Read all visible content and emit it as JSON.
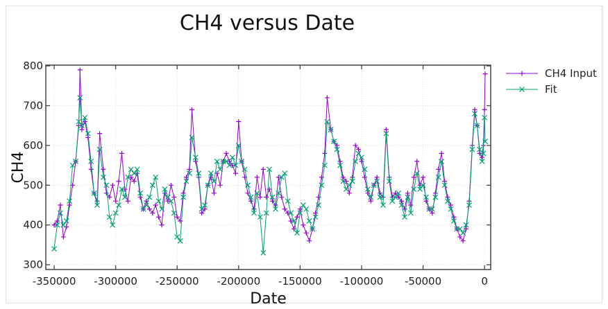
{
  "chart_data": {
    "type": "line",
    "title": "CH4 versus Date",
    "xlabel": "Date",
    "ylabel": "CH4",
    "xlim": [
      -356800,
      5000
    ],
    "ylim": [
      288,
      802
    ],
    "xticks": [
      -350000,
      -300000,
      -250000,
      -200000,
      -150000,
      -100000,
      -50000,
      0
    ],
    "xtick_labels": [
      "-350000",
      "-300000",
      "-250000",
      "-200000",
      "-150000",
      "-100000",
      "-50000",
      "0"
    ],
    "yticks": [
      300,
      400,
      500,
      600,
      700,
      800
    ],
    "ytick_labels": [
      "300",
      "400",
      "500",
      "600",
      "700",
      "800"
    ],
    "grid": true,
    "legend_position": "outside-top-right",
    "x": [
      -350000,
      -347500,
      -345000,
      -342500,
      -340000,
      -337500,
      -335000,
      -332500,
      -330000,
      -329000,
      -327500,
      -325000,
      -322500,
      -320000,
      -317500,
      -315000,
      -313000,
      -310000,
      -307500,
      -305000,
      -302500,
      -300000,
      -297500,
      -295000,
      -292500,
      -290000,
      -287500,
      -285000,
      -282500,
      -280000,
      -277500,
      -275000,
      -272500,
      -270000,
      -267500,
      -265000,
      -262500,
      -260000,
      -257500,
      -255000,
      -252500,
      -250000,
      -247500,
      -245000,
      -242500,
      -240000,
      -238000,
      -235000,
      -232500,
      -230000,
      -227500,
      -225000,
      -222500,
      -220000,
      -217500,
      -215000,
      -212500,
      -210000,
      -207500,
      -205000,
      -202500,
      -200000,
      -197500,
      -195000,
      -192500,
      -190000,
      -187500,
      -185000,
      -182500,
      -180000,
      -177500,
      -175000,
      -172500,
      -170000,
      -167500,
      -165000,
      -162500,
      -160000,
      -157500,
      -155000,
      -152500,
      -150000,
      -147500,
      -145000,
      -142500,
      -140000,
      -137500,
      -135000,
      -132500,
      -130000,
      -128000,
      -125000,
      -122500,
      -120000,
      -117500,
      -115000,
      -112500,
      -110000,
      -107500,
      -105000,
      -102500,
      -100000,
      -97500,
      -95000,
      -92500,
      -90000,
      -87500,
      -85000,
      -82500,
      -80000,
      -77500,
      -75000,
      -72500,
      -70000,
      -67500,
      -65000,
      -62500,
      -60000,
      -57500,
      -55000,
      -52500,
      -50000,
      -47500,
      -45000,
      -42500,
      -40000,
      -37500,
      -35000,
      -32500,
      -30000,
      -27500,
      -25000,
      -22500,
      -20000,
      -17500,
      -15000,
      -12500,
      -10000,
      -8000,
      -6000,
      -4000,
      -2000,
      -1000,
      0,
      500
    ],
    "series": [
      {
        "name": "CH4 Input",
        "color": "#9400d3",
        "marker": "plus",
        "values": [
          400,
          410,
          450,
          370,
          395,
          450,
          500,
          560,
          650,
          790,
          640,
          660,
          620,
          540,
          480,
          460,
          630,
          540,
          480,
          470,
          500,
          460,
          510,
          580,
          490,
          460,
          520,
          510,
          530,
          470,
          440,
          460,
          440,
          430,
          450,
          420,
          400,
          480,
          460,
          500,
          470,
          420,
          410,
          480,
          520,
          540,
          690,
          560,
          520,
          430,
          440,
          500,
          520,
          480,
          530,
          500,
          560,
          580,
          560,
          550,
          530,
          660,
          560,
          520,
          480,
          460,
          440,
          520,
          470,
          540,
          470,
          490,
          460,
          450,
          520,
          470,
          440,
          430,
          410,
          390,
          420,
          440,
          400,
          380,
          360,
          390,
          430,
          470,
          520,
          580,
          720,
          640,
          610,
          600,
          560,
          520,
          510,
          480,
          520,
          600,
          590,
          560,
          520,
          480,
          460,
          500,
          520,
          480,
          470,
          640,
          520,
          470,
          480,
          470,
          460,
          440,
          480,
          450,
          520,
          560,
          500,
          520,
          460,
          440,
          430,
          480,
          540,
          580,
          510,
          470,
          450,
          420,
          390,
          370,
          360,
          390,
          460,
          600,
          690,
          650,
          580,
          570,
          600,
          690,
          780
        ]
      },
      {
        "name": "Fit",
        "color": "#009e73",
        "marker": "x",
        "values": [
          340,
          400,
          430,
          400,
          410,
          460,
          550,
          560,
          660,
          720,
          650,
          670,
          630,
          560,
          480,
          450,
          590,
          520,
          500,
          420,
          400,
          430,
          450,
          490,
          470,
          520,
          540,
          530,
          540,
          480,
          440,
          450,
          470,
          500,
          520,
          460,
          440,
          490,
          470,
          460,
          430,
          370,
          360,
          470,
          510,
          530,
          620,
          570,
          530,
          440,
          450,
          500,
          530,
          510,
          560,
          540,
          560,
          560,
          550,
          570,
          550,
          600,
          560,
          540,
          500,
          470,
          430,
          480,
          420,
          330,
          430,
          540,
          470,
          440,
          480,
          520,
          530,
          460,
          430,
          410,
          380,
          430,
          450,
          440,
          410,
          390,
          420,
          450,
          500,
          550,
          660,
          640,
          610,
          590,
          550,
          510,
          490,
          500,
          510,
          560,
          580,
          570,
          540,
          490,
          470,
          500,
          510,
          470,
          450,
          630,
          510,
          460,
          470,
          480,
          450,
          420,
          470,
          430,
          490,
          530,
          490,
          500,
          470,
          440,
          440,
          470,
          520,
          560,
          500,
          460,
          440,
          410,
          390,
          390,
          380,
          400,
          450,
          590,
          680,
          650,
          590,
          560,
          580,
          670,
          610
        ]
      }
    ]
  }
}
